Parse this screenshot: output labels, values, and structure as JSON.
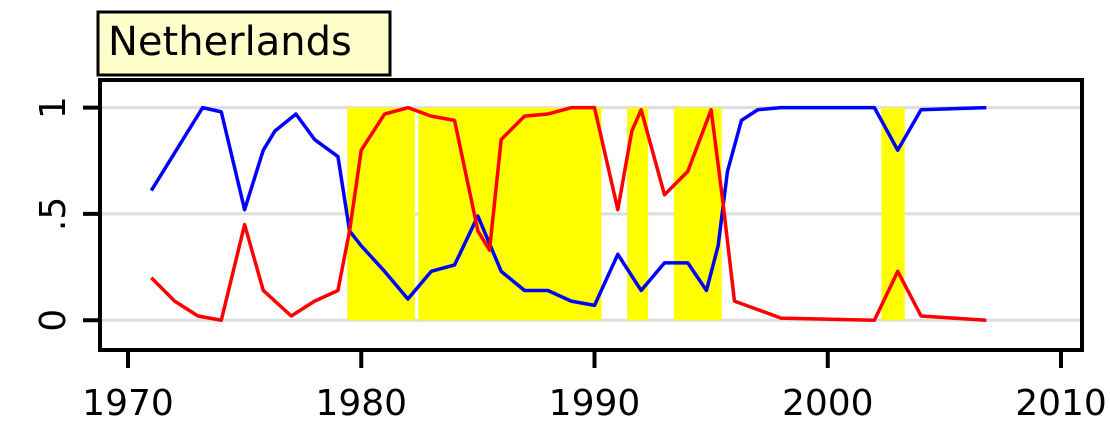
{
  "chart_data": {
    "type": "line",
    "title": "Netherlands",
    "xlim": [
      1968.8,
      2010.9
    ],
    "ylim": [
      -0.14,
      1.13
    ],
    "xticks": [
      1970,
      1980,
      1990,
      2000,
      2010
    ],
    "yticks": [
      0,
      {
        "value": 0.5,
        "label": ".5"
      },
      1
    ],
    "grid": true,
    "shade_color": "#ffff00",
    "shaded_periods": [
      [
        1979.4,
        1982.3
      ],
      [
        1982.45,
        1990.3
      ],
      [
        1991.4,
        1992.3
      ],
      [
        1993.4,
        1995.45
      ],
      [
        2002.3,
        2003.3
      ]
    ],
    "series": [
      {
        "color": "#0000ff",
        "x": [
          1971,
          1973.2,
          1974,
          1975,
          1975.8,
          1976.3,
          1977.2,
          1978,
          1979,
          1979.5,
          1980,
          1981,
          1982,
          1983,
          1984,
          1985,
          1986,
          1987,
          1988,
          1989,
          1990,
          1991,
          1992,
          1993,
          1994,
          1994.8,
          1995.3,
          1995.7,
          1996.3,
          1997,
          1998,
          2002,
          2003,
          2004,
          2006.8
        ],
        "values": [
          0.61,
          1,
          0.98,
          0.52,
          0.8,
          0.89,
          0.97,
          0.85,
          0.77,
          0.42,
          0.35,
          0.23,
          0.1,
          0.23,
          0.26,
          0.49,
          0.23,
          0.14,
          0.14,
          0.09,
          0.07,
          0.31,
          0.14,
          0.27,
          0.27,
          0.14,
          0.35,
          0.7,
          0.94,
          0.99,
          1,
          1,
          0.8,
          0.99,
          1
        ]
      },
      {
        "color": "#ff0000",
        "x": [
          1971,
          1972,
          1973,
          1974,
          1975,
          1975.8,
          1977,
          1978,
          1979,
          1979.5,
          1980,
          1981,
          1982,
          1983,
          1984,
          1985,
          1985.5,
          1986,
          1987,
          1988,
          1989,
          1990,
          1991,
          1991.6,
          1992,
          1993,
          1994,
          1995,
          1995.5,
          1996,
          1997,
          1998,
          2002,
          2003,
          2004,
          2006.8
        ],
        "values": [
          0.2,
          0.09,
          0.02,
          0,
          0.45,
          0.14,
          0.02,
          0.09,
          0.14,
          0.42,
          0.8,
          0.97,
          1,
          0.96,
          0.94,
          0.42,
          0.33,
          0.85,
          0.96,
          0.97,
          1,
          1,
          0.52,
          0.89,
          0.99,
          0.59,
          0.7,
          0.99,
          0.56,
          0.09,
          0.05,
          0.01,
          0,
          0.23,
          0.02,
          0
        ]
      }
    ]
  }
}
